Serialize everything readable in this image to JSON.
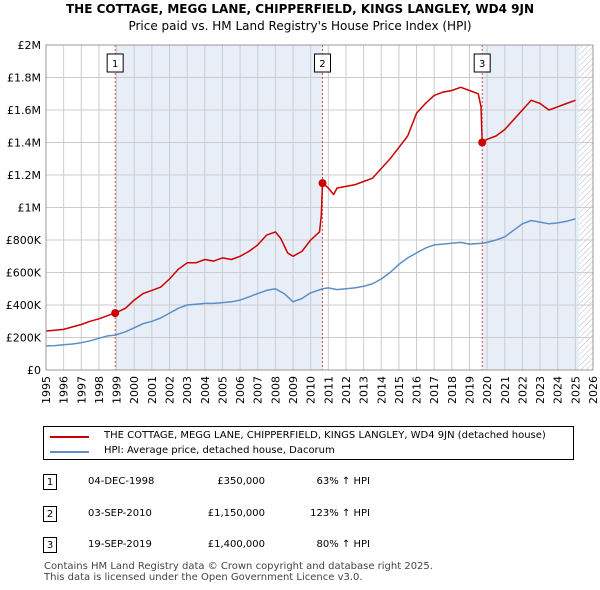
{
  "title_line1": "THE COTTAGE, MEGG LANE, CHIPPERFIELD, KINGS LANGLEY, WD4 9JN",
  "title_line2": "Price paid vs. HM Land Registry's House Price Index (HPI)",
  "chart_data": {
    "type": "line",
    "title": "THE COTTAGE, MEGG LANE, CHIPPERFIELD, KINGS LANGLEY, WD4 9JN",
    "subtitle": "Price paid vs. HM Land Registry's House Price Index (HPI)",
    "xlim": [
      1995,
      2026
    ],
    "ylim": [
      0,
      2000000
    ],
    "x_ticks": [
      "1995",
      "1996",
      "1997",
      "1998",
      "1999",
      "2000",
      "2001",
      "2002",
      "2003",
      "2004",
      "2005",
      "2006",
      "2007",
      "2008",
      "2009",
      "2010",
      "2011",
      "2012",
      "2013",
      "2014",
      "2015",
      "2016",
      "2017",
      "2018",
      "2019",
      "2020",
      "2021",
      "2022",
      "2023",
      "2024",
      "2025",
      "2026"
    ],
    "y_ticks": [
      {
        "value": 0,
        "label": "£0"
      },
      {
        "value": 200000,
        "label": "£200K"
      },
      {
        "value": 400000,
        "label": "£400K"
      },
      {
        "value": 600000,
        "label": "£600K"
      },
      {
        "value": 800000,
        "label": "£800K"
      },
      {
        "value": 1000000,
        "label": "£1M"
      },
      {
        "value": 1200000,
        "label": "£1.2M"
      },
      {
        "value": 1400000,
        "label": "£1.4M"
      },
      {
        "value": 1600000,
        "label": "£1.6M"
      },
      {
        "value": 1800000,
        "label": "£1.8M"
      },
      {
        "value": 2000000,
        "label": "£2M"
      }
    ],
    "grid": true,
    "shaded_regions": [
      {
        "from": 1998.92,
        "to": 2010.67
      },
      {
        "from": 2019.72,
        "to": 2025.2
      }
    ],
    "hatched_region": {
      "from": 2025.2,
      "to": 2026
    },
    "series": [
      {
        "name": "THE COTTAGE, MEGG LANE, CHIPPERFIELD, KINGS LANGLEY, WD4 9JN (detached house)",
        "color": "#cc0000",
        "x": [
          1995.0,
          1995.5,
          1996.0,
          1996.5,
          1997.0,
          1997.5,
          1998.0,
          1998.5,
          1998.92,
          1999.5,
          2000.0,
          2000.5,
          2001.0,
          2001.5,
          2002.0,
          2002.5,
          2003.0,
          2003.5,
          2004.0,
          2004.5,
          2005.0,
          2005.5,
          2006.0,
          2006.5,
          2007.0,
          2007.5,
          2008.0,
          2008.3,
          2008.7,
          2009.0,
          2009.5,
          2010.0,
          2010.5,
          2010.6,
          2010.67,
          2011.0,
          2011.3,
          2011.5,
          2012.0,
          2012.5,
          2013.0,
          2013.5,
          2014.0,
          2014.5,
          2015.0,
          2015.5,
          2016.0,
          2016.5,
          2017.0,
          2017.5,
          2018.0,
          2018.5,
          2019.0,
          2019.5,
          2019.65,
          2019.72,
          2020.0,
          2020.5,
          2021.0,
          2021.5,
          2022.0,
          2022.5,
          2023.0,
          2023.5,
          2024.0,
          2024.5,
          2025.0
        ],
        "values": [
          240000,
          245000,
          250000,
          265000,
          280000,
          300000,
          315000,
          335000,
          350000,
          380000,
          430000,
          470000,
          490000,
          510000,
          560000,
          620000,
          660000,
          660000,
          680000,
          670000,
          690000,
          680000,
          700000,
          730000,
          770000,
          830000,
          850000,
          810000,
          720000,
          700000,
          730000,
          800000,
          850000,
          950000,
          1150000,
          1120000,
          1080000,
          1120000,
          1130000,
          1140000,
          1160000,
          1180000,
          1240000,
          1300000,
          1370000,
          1440000,
          1580000,
          1640000,
          1690000,
          1710000,
          1720000,
          1740000,
          1720000,
          1700000,
          1620000,
          1400000,
          1420000,
          1440000,
          1480000,
          1540000,
          1600000,
          1660000,
          1640000,
          1600000,
          1620000,
          1640000,
          1660000
        ]
      },
      {
        "name": "HPI: Average price, detached house, Dacorum",
        "color": "#5b8fc7",
        "x": [
          1995.0,
          1995.5,
          1996.0,
          1996.5,
          1997.0,
          1997.5,
          1998.0,
          1998.5,
          1998.92,
          1999.5,
          2000.0,
          2000.5,
          2001.0,
          2001.5,
          2002.0,
          2002.5,
          2003.0,
          2003.5,
          2004.0,
          2004.5,
          2005.0,
          2005.5,
          2006.0,
          2006.5,
          2007.0,
          2007.5,
          2008.0,
          2008.5,
          2009.0,
          2009.5,
          2010.0,
          2010.67,
          2011.0,
          2011.5,
          2012.0,
          2012.5,
          2013.0,
          2013.5,
          2014.0,
          2014.5,
          2015.0,
          2015.5,
          2016.0,
          2016.5,
          2017.0,
          2017.5,
          2018.0,
          2018.5,
          2019.0,
          2019.72,
          2020.0,
          2020.5,
          2021.0,
          2021.5,
          2022.0,
          2022.5,
          2023.0,
          2023.5,
          2024.0,
          2024.5,
          2025.0
        ],
        "values": [
          148000,
          150000,
          155000,
          160000,
          168000,
          180000,
          195000,
          210000,
          215000,
          235000,
          260000,
          285000,
          300000,
          320000,
          350000,
          380000,
          400000,
          405000,
          410000,
          410000,
          415000,
          420000,
          430000,
          450000,
          470000,
          490000,
          500000,
          470000,
          420000,
          440000,
          475000,
          500000,
          505000,
          495000,
          500000,
          505000,
          515000,
          530000,
          560000,
          600000,
          650000,
          690000,
          720000,
          750000,
          770000,
          775000,
          780000,
          785000,
          775000,
          780000,
          785000,
          800000,
          820000,
          860000,
          900000,
          920000,
          910000,
          900000,
          905000,
          915000,
          930000
        ]
      }
    ],
    "sales": [
      {
        "label": "1",
        "x": 1998.92,
        "value": 350000
      },
      {
        "label": "2",
        "x": 2010.67,
        "value": 1150000
      },
      {
        "label": "3",
        "x": 2019.72,
        "value": 1400000
      }
    ]
  },
  "legend": {
    "property_label": "THE COTTAGE, MEGG LANE, CHIPPERFIELD, KINGS LANGLEY, WD4 9JN (detached house)",
    "hpi_label": "HPI: Average price, detached house, Dacorum"
  },
  "transactions": [
    {
      "num": "1",
      "date": "04-DEC-1998",
      "price": "£350,000",
      "hpi": "63% ↑ HPI"
    },
    {
      "num": "2",
      "date": "03-SEP-2010",
      "price": "£1,150,000",
      "hpi": "123% ↑ HPI"
    },
    {
      "num": "3",
      "date": "19-SEP-2019",
      "price": "£1,400,000",
      "hpi": "80% ↑ HPI"
    }
  ],
  "footer_line1": "Contains HM Land Registry data © Crown copyright and database right 2025.",
  "footer_line2": "This data is licensed under the Open Government Licence v3.0.",
  "colors": {
    "property": "#cc0000",
    "hpi": "#5b8fc7",
    "shade": "#e8eef8",
    "grid": "#cccccc"
  }
}
